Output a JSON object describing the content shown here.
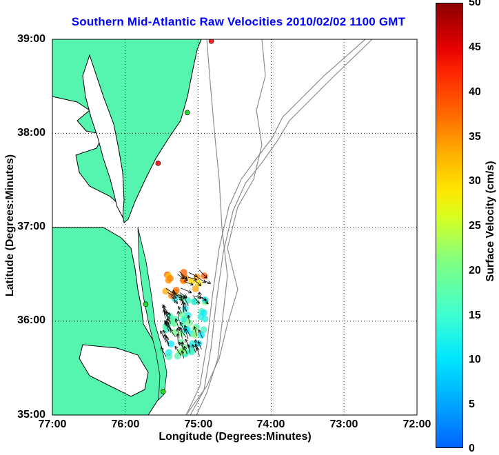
{
  "title": "Southern Mid-Atlantic Raw Velocities 2010/02/02 1100 GMT",
  "x_axis": {
    "label": "Longitude (Degrees:Minutes)",
    "ticks": [
      "77:00",
      "76:00",
      "75:00",
      "74:00",
      "73:00",
      "72:00"
    ]
  },
  "y_axis": {
    "label": "Latitude (Degrees:Minutes)",
    "ticks": [
      "39:00",
      "38:00",
      "37:00",
      "36:00",
      "35:00"
    ]
  },
  "colorbar": {
    "label": "Surface Velocity (cm/s)",
    "ticks": [
      "50",
      "45",
      "40",
      "35",
      "30",
      "25",
      "20",
      "15",
      "10",
      "5",
      "0"
    ],
    "range": [
      0,
      50
    ]
  },
  "colors": {
    "land": "#55f5b0",
    "coastline": "#000000",
    "bathymetry": "#8c8c8c",
    "site_active": "#22dd22",
    "site_inactive": "#ff2020",
    "title": "#0000ff"
  },
  "map": {
    "lon_range": [
      -77,
      -72
    ],
    "lat_range": [
      35,
      39
    ],
    "grid": true
  },
  "sites": [
    {
      "lon": -74.82,
      "lat": 38.98,
      "status": "inactive"
    },
    {
      "lon": -75.15,
      "lat": 38.22,
      "status": "active"
    },
    {
      "lon": -75.55,
      "lat": 37.68,
      "status": "inactive"
    },
    {
      "lon": -75.72,
      "lat": 36.18,
      "status": "active"
    },
    {
      "lon": -75.48,
      "lat": 35.25,
      "status": "active"
    }
  ]
}
